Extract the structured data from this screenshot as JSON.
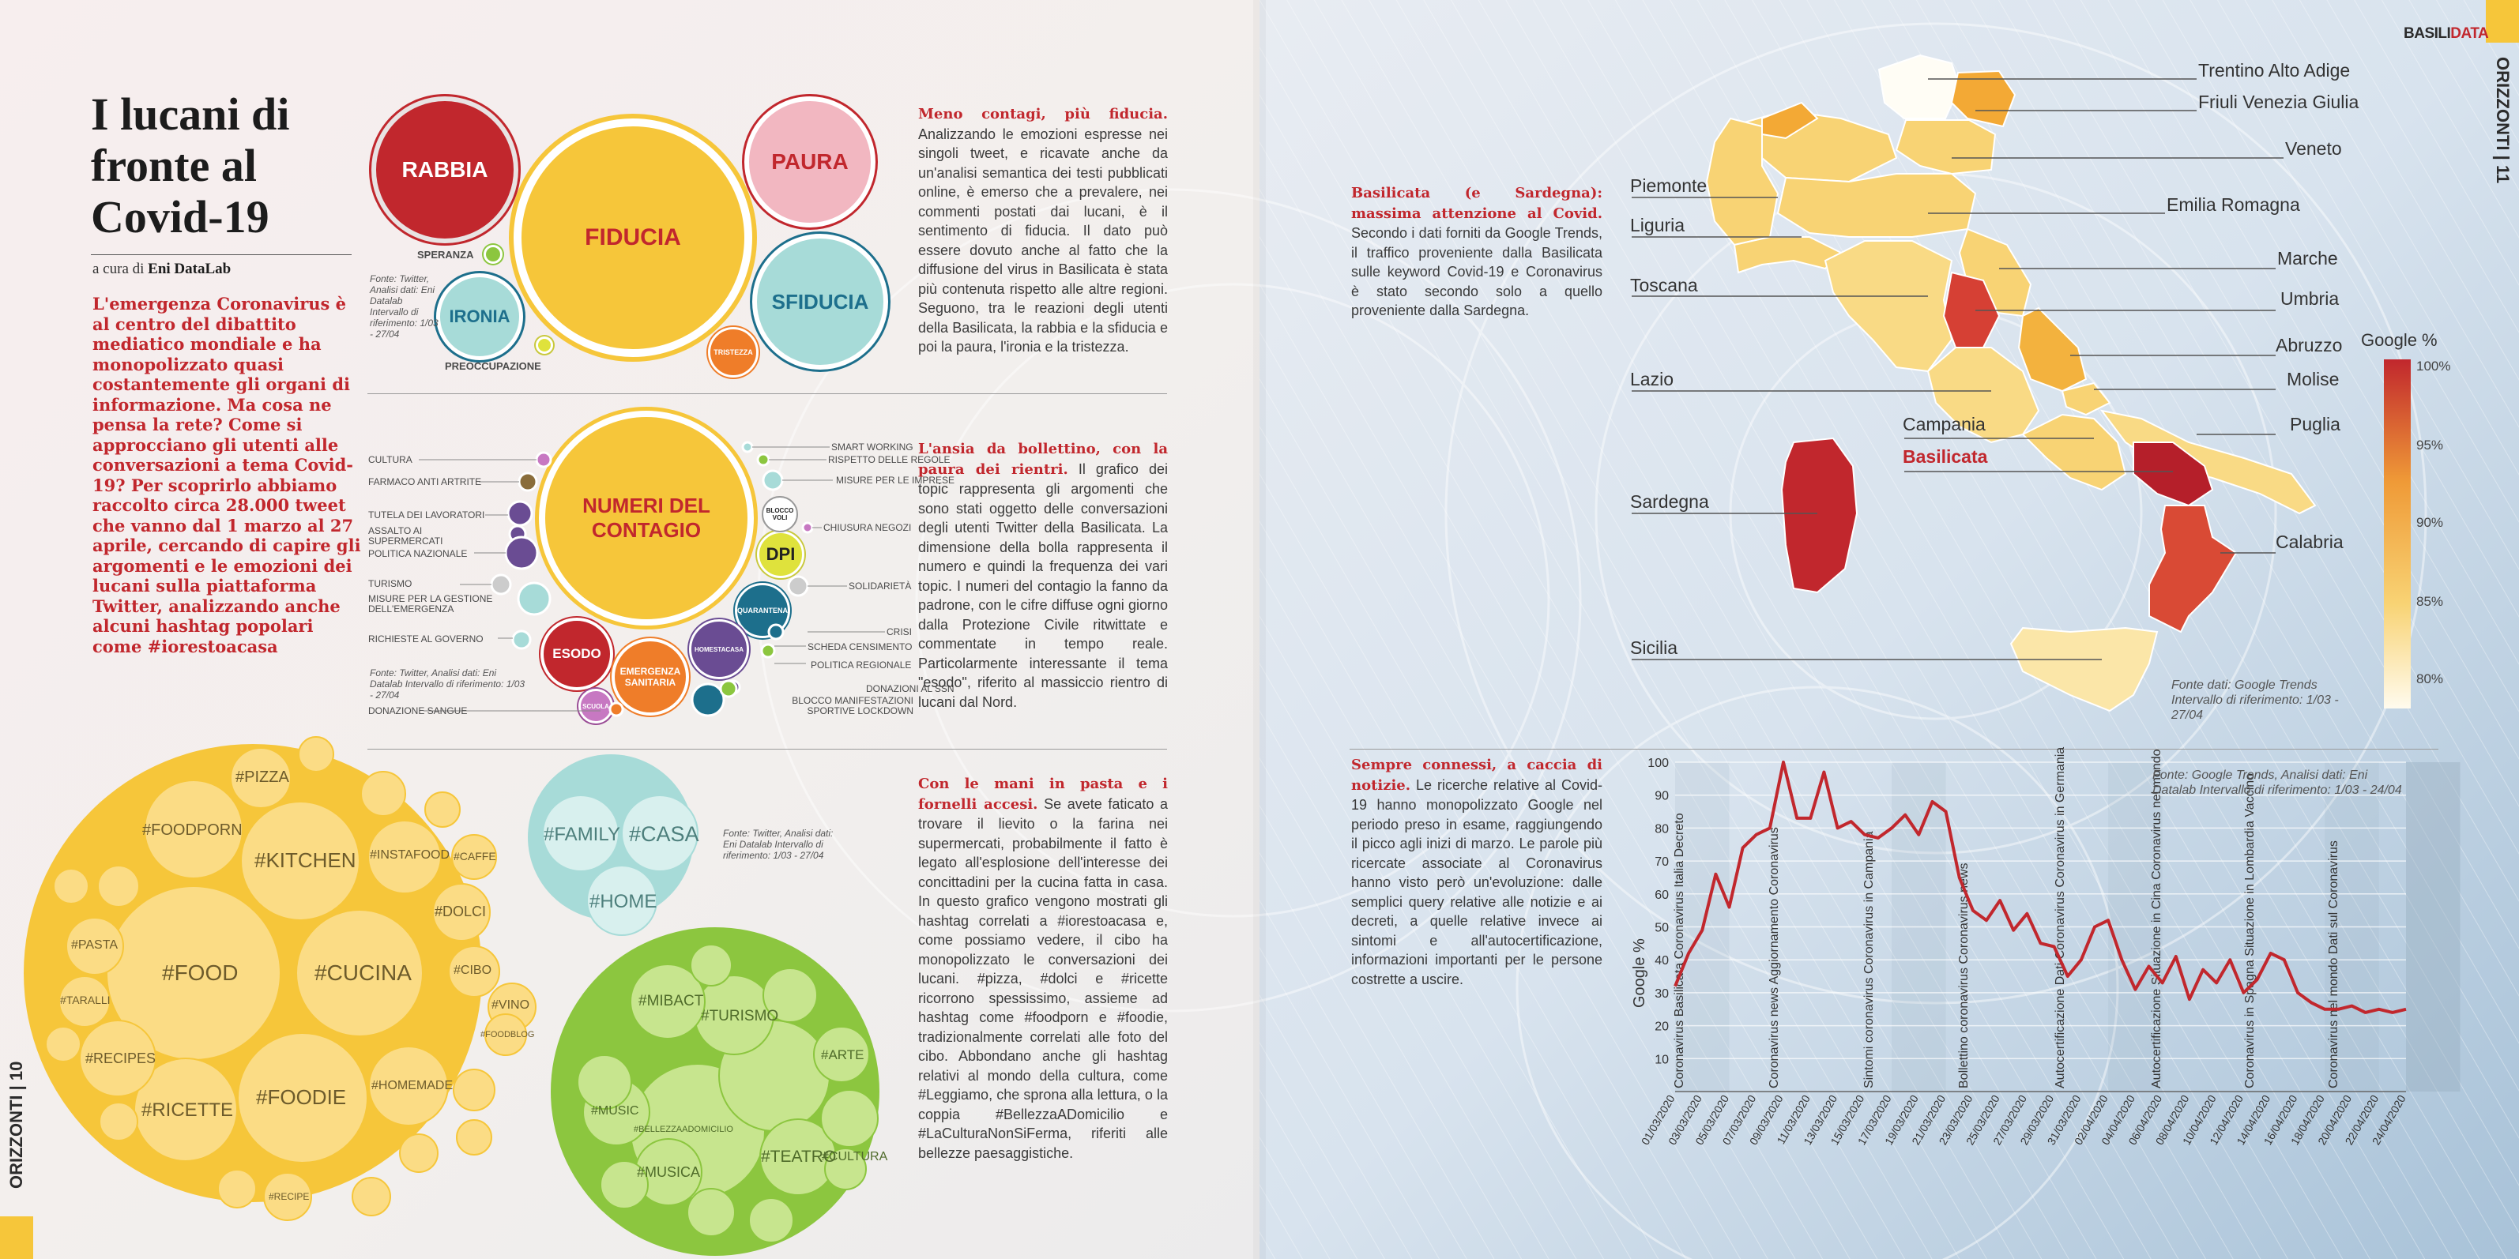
{
  "left_page": {
    "title": "I lucani di fronte al Covid-19",
    "byline_prefix": "a cura di",
    "byline_author": "Eni DataLab",
    "intro": "L'emergenza Coronavirus è al centro del dibattito mediatico mondiale e ha monopolizzato quasi costantemente gli organi di informazione. Ma cosa ne pensa la rete? Come si approcciano gli utenti alle conversazioni a tema Covid-19? Per scoprirlo abbiamo raccolto circa 28.000 tweet che vanno dal 1 marzo al 27 aprile, cercando di capire gli argomenti e le emozioni dei lucani sulla piattaforma Twitter, analizzando anche alcuni hashtag popolari come #iorestoacasa",
    "page_number": "10",
    "section_name": "ORIZZONTI",
    "emotions": {
      "bubbles": [
        "RABBIA",
        "FIDUCIA",
        "PAURA",
        "SFIDUCIA",
        "IRONIA",
        "TRISTEZZA"
      ],
      "small_labels": [
        "SPERANZA",
        "PREOCCUPAZIONE"
      ],
      "source": "Fonte: Twitter, Analisi dati: Eni Datalab Intervallo di riferimento: 1/03 - 27/04"
    },
    "topics": {
      "main": "NUMERI DEL CONTAGIO",
      "bubbles": [
        "DPI",
        "ESODO",
        "EMERGENZA SANITARIA",
        "QUARANTENA",
        "HOMESTACASA",
        "BLOCCO VOLI",
        "SCUOLA"
      ],
      "left_labels": [
        "CULTURA",
        "FARMACO ANTI ARTRITE",
        "TUTELA DEI LAVORATORI",
        "ASSALTO AI SUPERMERCATI",
        "POLITICA NAZIONALE",
        "TURISMO",
        "MISURE PER LA GESTIONE DELL'EMERGENZA",
        "RICHIESTE AL GOVERNO",
        "DONAZIONE SANGUE"
      ],
      "right_labels": [
        "SMART WORKING",
        "RISPETTO DELLE REGOLE",
        "MISURE PER LE IMPRESE",
        "CHIUSURA NEGOZI",
        "SOLIDARIETÀ",
        "CRISI",
        "SCHEDA CENSIMENTO",
        "POLITICA REGIONALE",
        "DONAZIONI AL SSN",
        "BLOCCO MANIFESTAZIONI SPORTIVE LOCKDOWN"
      ],
      "source": "Fonte: Twitter, Analisi dati: Eni Datalab Intervallo di riferimento: 1/03 - 27/04"
    },
    "food_tags": [
      "#FOOD",
      "#CUCINA",
      "#KITCHEN",
      "#FOODIE",
      "#RICETTE",
      "#FOODPORN",
      "#PIZZA",
      "#INSTAFOOD",
      "#DOLCI",
      "#RECIPES",
      "#HOMEMADE",
      "#CIBO",
      "#VINO",
      "#PASTA",
      "#TARALLI",
      "#CAFFE",
      "#FOODBLOG",
      "#RECIPE"
    ],
    "home_tags": [
      "#FAMILY",
      "#CASA",
      "#HOME"
    ],
    "culture_tags": [
      "#MIBACT",
      "#TURISMO",
      "#ARTE",
      "#MUSIC",
      "#MUSICA",
      "#TEATRO",
      "#CULTURA",
      "#BELLEZZAADOMICILIO"
    ],
    "hashtag_source": "Fonte: Twitter, Analisi dati: Eni Datalab Intervallo di riferimento: 1/03 - 27/04",
    "col1_head": "Meno contagi, più fiducia.",
    "col1_body": "Analizzando le emozioni espresse nei singoli tweet, e ricavate anche da un'analisi semantica dei testi pubblicati online, è emerso che a prevalere, nei commenti postati dai lucani, è il sentimento di fiducia. Il dato può essere dovuto anche al fatto che la diffusione del virus in Basilicata è stata più contenuta rispetto alle altre regioni. Seguono, tra le reazioni degli utenti della Basilicata, la rabbia e la sfiducia e poi la paura, l'ironia e la tristezza.",
    "col2_head": "L'ansia da bollettino, con la paura dei rientri.",
    "col2_body": "Il grafico dei topic rappresenta gli argomenti che sono stati oggetto delle conversazioni degli utenti Twitter della Basilicata. La dimensione della bolla rappresenta il numero e quindi la frequenza dei vari topic. I numeri del contagio la fanno da padrone, con le cifre diffuse ogni giorno dalla Protezione Civile ritwittate e commentate in tempo reale. Particolarmente interessante il tema \"esodo\", riferito al massiccio rientro di lucani dal Nord.",
    "col3_head": "Con le mani in pasta e i fornelli accesi.",
    "col3_body": "Se avete faticato a trovare il lievito o la farina nei supermercati, probabilmente il fatto è legato all'esplosione dell'interesse dei concittadini per la cucina fatta in casa. In questo grafico vengono mostrati gli hashtag correlati a #iorestoacasa e, come possiamo vedere, il cibo ha monopolizzato le conversazioni dei lucani. #pizza, #dolci e #ricette ricorrono spessissimo, assieme ad hashtag come #foodporn e #foodie, tradizionalmente correlati alle foto del cibo. Abbondano anche gli hashtag relativi al mondo della cultura, come #Leggiamo, che sprona alla lettura, o la coppia #BellezzaADomicilio e #LaCulturaNonSiFerma, riferiti alle bellezze paesaggistiche."
  },
  "right_page": {
    "brand_a": "BASILI",
    "brand_b": "DATA",
    "section_name": "ORIZZONTI",
    "page_number": "11",
    "map_head": "Basilicata (e Sardegna): massima attenzione al Covid.",
    "map_body": "Secondo i dati forniti da Google Trends, il traffico proveniente dalla Basilicata sulle keyword Covid-19 e Coronavirus è stato secondo solo a quello proveniente dalla Sardegna.",
    "regions_left": [
      "Piemonte",
      "Liguria",
      "Toscana",
      "Lazio",
      "Campania",
      "Basilicata",
      "Sardegna",
      "Sicilia"
    ],
    "regions_right": [
      "Trentino Alto Adige",
      "Friuli Venezia Giulia",
      "Veneto",
      "Emilia Romagna",
      "Marche",
      "Umbria",
      "Abruzzo",
      "Molise",
      "Puglia",
      "Calabria"
    ],
    "legend_title": "Google %",
    "legend_ticks": [
      "100%",
      "95%",
      "90%",
      "85%",
      "80%"
    ],
    "map_source": "Fonte dati: Google Trends Intervallo di riferimento: 1/03 - 27/04",
    "colors": {
      "red": "#c1272d",
      "yellow": "#f6c63a",
      "green": "#8cc63f",
      "teal": "#a7dbd8"
    },
    "trend_head": "Sempre connessi, a caccia di notizie.",
    "trend_body": "Le ricerche relative al Covid-19 hanno monopolizzato Google nel periodo preso in esame, raggiungendo il picco agli inizi di marzo. Le parole più ricercate associate al Coronavirus hanno visto però un'evoluzione: dalle semplici query relative alle notizie e ai decreti, a quelle relative invece ai sintomi e all'autocertificazione, informazioni importanti per le persone costrette a uscire.",
    "trend_source": "Fonte: Google Trends, Analisi dati: Eni Datalab Intervallo di riferimento: 1/03 - 24/04"
  },
  "chart_data": {
    "type": "line",
    "ylabel": "Google %",
    "ylim": [
      0,
      100
    ],
    "yticks": [
      10,
      20,
      30,
      40,
      50,
      60,
      70,
      80,
      90,
      100
    ],
    "xticks": [
      "01/03/2020",
      "03/03/2020",
      "05/03/2020",
      "07/03/2020",
      "09/03/2020",
      "11/03/2020",
      "13/03/2020",
      "15/03/2020",
      "17/03/2020",
      "19/03/2020",
      "21/03/2020",
      "23/03/2020",
      "25/03/2020",
      "27/03/2020",
      "29/03/2020",
      "31/03/2020",
      "02/04/2020",
      "04/04/2020",
      "06/04/2020",
      "08/04/2020",
      "10/04/2020",
      "12/04/2020",
      "14/04/2020",
      "16/04/2020",
      "18/04/2020",
      "20/04/2020",
      "22/04/2020",
      "24/04/2020"
    ],
    "series": [
      {
        "values": [
          32,
          42,
          49,
          66,
          56,
          74,
          78,
          80,
          100,
          83,
          83,
          97,
          80,
          82,
          78,
          77,
          80,
          84,
          78,
          88,
          85,
          65,
          55,
          52,
          58,
          49,
          54,
          45,
          44,
          35,
          40,
          50,
          52,
          40,
          31,
          38,
          33,
          41,
          28,
          37,
          33,
          40,
          30,
          34,
          42,
          40,
          30,
          27,
          25,
          25,
          26,
          24,
          25,
          24,
          25
        ]
      }
    ],
    "annotations": [
      "Coronavirus Basilicata Coronavirus Italia Decreto",
      "Coronavirus news Aggiornamento Coronavirus",
      "Sintomi coronavirus Coronavirus in Campania",
      "Bollettino coronavirus Coronavirus news",
      "Autocertificazione Dati Coronavirus Coronavirus in Germania",
      "Autocertificazione Situazione in Cina Coronavirus nel mondo",
      "Coronavirus in Spagna Situazione in Lombardia Vaccino",
      "Coronavirus nel mondo Dati sul Coronavirus"
    ]
  }
}
